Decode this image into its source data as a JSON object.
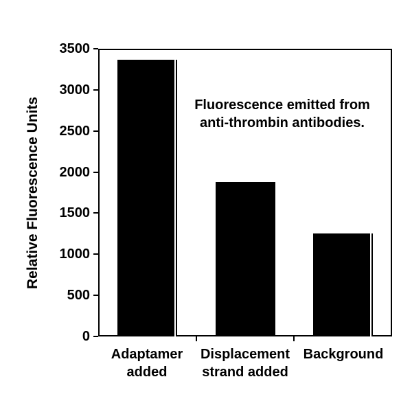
{
  "chart_data": {
    "type": "bar",
    "categories": [
      "Adaptamer\nadded",
      "Displacement\nstrand added",
      "Background"
    ],
    "values": [
      3370,
      1880,
      1250
    ],
    "title": "",
    "xlabel": "",
    "ylabel": "Relative Fluorescence Units",
    "ylim": [
      0,
      3500
    ],
    "yticks": [
      0,
      500,
      1000,
      1500,
      2000,
      2500,
      3000,
      3500
    ],
    "annotation": "Fluorescence emitted from\nanti-thrombin antibodies.",
    "bar_color": "#000000",
    "axis_color": "#000000",
    "background_color": "#ffffff",
    "grid": false,
    "legend": false
  }
}
